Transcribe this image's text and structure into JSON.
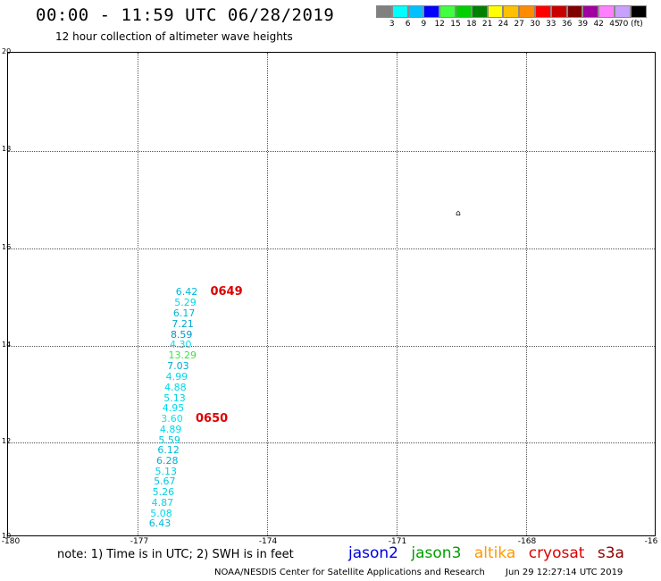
{
  "header": {
    "title": "00:00 - 11:59 UTC 06/28/2019",
    "subtitle": "12 hour collection of altimeter wave heights"
  },
  "legend": {
    "colors": [
      "#808080",
      "#00ffff",
      "#00c0ff",
      "#0000ff",
      "#40ff40",
      "#00d000",
      "#008000",
      "#ffff00",
      "#ffc000",
      "#ff8c00",
      "#ff0000",
      "#c80000",
      "#800000",
      "#a000a0",
      "#ff80ff",
      "#c8a0ff",
      "#000000"
    ],
    "labels": [
      "3",
      "6",
      "9",
      "12",
      "15",
      "18",
      "21",
      "24",
      "27",
      "30",
      "33",
      "36",
      "39",
      "42",
      "45",
      "70 (ft)"
    ]
  },
  "map": {
    "lat_labels": [
      "20",
      "18",
      "16",
      "14",
      "12",
      "10"
    ],
    "lon_labels": [
      "-180",
      "-177",
      "-174",
      "-171",
      "-168",
      "-16"
    ],
    "island_symbol": "⌂"
  },
  "pass_times": [
    "0649",
    "0650"
  ],
  "wave_heights": [
    {
      "value": "6.42",
      "lat": 15.04,
      "lon": -176.1,
      "color": "#00b8d8"
    },
    {
      "value": "5.29",
      "lat": 14.82,
      "lon": -176.13,
      "color": "#00d8e8"
    },
    {
      "value": "6.17",
      "lat": 14.6,
      "lon": -176.16,
      "color": "#00b8d8"
    },
    {
      "value": "7.21",
      "lat": 14.38,
      "lon": -176.19,
      "color": "#00a8d0"
    },
    {
      "value": "8.59",
      "lat": 14.16,
      "lon": -176.22,
      "color": "#0098c8"
    },
    {
      "value": "4.30",
      "lat": 13.94,
      "lon": -176.24,
      "color": "#00e0ee"
    },
    {
      "value": "13.29",
      "lat": 13.72,
      "lon": -176.27,
      "color": "#40e040"
    },
    {
      "value": "7.03",
      "lat": 13.5,
      "lon": -176.3,
      "color": "#00a8d0"
    },
    {
      "value": "4.99",
      "lat": 13.28,
      "lon": -176.33,
      "color": "#00d8e8"
    },
    {
      "value": "4.88",
      "lat": 13.07,
      "lon": -176.36,
      "color": "#00d8e8"
    },
    {
      "value": "5.13",
      "lat": 12.85,
      "lon": -176.38,
      "color": "#00d0e4"
    },
    {
      "value": "4.95",
      "lat": 12.63,
      "lon": -176.41,
      "color": "#00d8e8"
    },
    {
      "value": "3.60",
      "lat": 12.42,
      "lon": -176.44,
      "color": "#00e8f0"
    },
    {
      "value": "4.89",
      "lat": 12.2,
      "lon": -176.47,
      "color": "#00d8e8"
    },
    {
      "value": "5.59",
      "lat": 11.98,
      "lon": -176.5,
      "color": "#00c8e0"
    },
    {
      "value": "6.12",
      "lat": 11.77,
      "lon": -176.52,
      "color": "#00b8d8"
    },
    {
      "value": "6.28",
      "lat": 11.55,
      "lon": -176.55,
      "color": "#00b0d4"
    },
    {
      "value": "5.13",
      "lat": 11.33,
      "lon": -176.58,
      "color": "#00d0e4"
    },
    {
      "value": "5.67",
      "lat": 11.12,
      "lon": -176.61,
      "color": "#00c8e0"
    },
    {
      "value": "5.26",
      "lat": 10.9,
      "lon": -176.64,
      "color": "#00d0e4"
    },
    {
      "value": "4.87",
      "lat": 10.68,
      "lon": -176.66,
      "color": "#00d8e8"
    },
    {
      "value": "5.08",
      "lat": 10.46,
      "lon": -176.69,
      "color": "#00d8e8"
    },
    {
      "value": "6.43",
      "lat": 10.25,
      "lon": -176.72,
      "color": "#00b8d8"
    }
  ],
  "pass_labels": [
    {
      "text": "0649",
      "lat": 15.04,
      "lon": -175.3
    },
    {
      "text": "0650",
      "lat": 12.42,
      "lon": -175.64
    }
  ],
  "note": "note: 1) Time is in UTC; 2) SWH is in feet",
  "satellites": [
    {
      "name": "jason2",
      "color": "#0000dd"
    },
    {
      "name": "jason3",
      "color": "#00a000"
    },
    {
      "name": "altika",
      "color": "#ff9900"
    },
    {
      "name": "cryosat",
      "color": "#dd0000"
    },
    {
      "name": "s3a",
      "color": "#8b0000"
    }
  ],
  "footer": {
    "credit": "NOAA/NESDIS Center for Satellite Applications and Research",
    "timestamp": "Jun 29 12:27:14 UTC 2019"
  }
}
